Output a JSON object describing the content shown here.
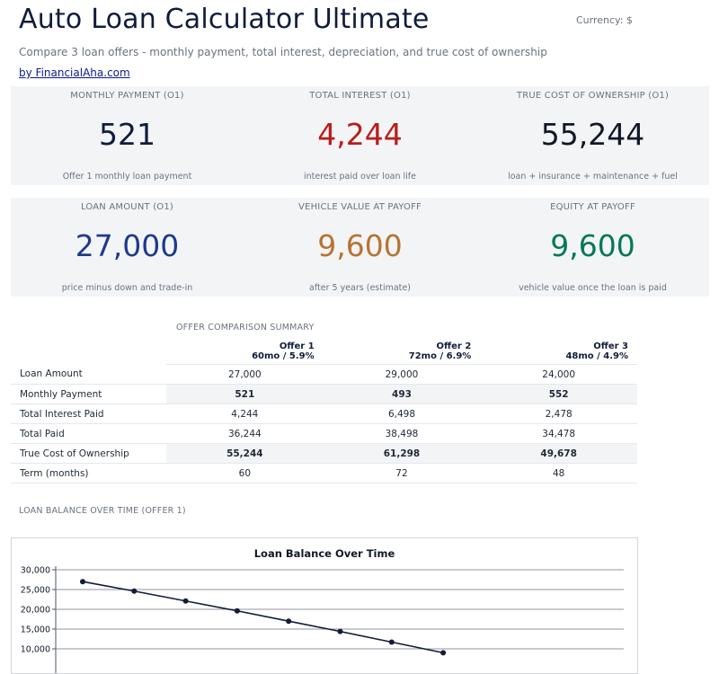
{
  "header": {
    "title": "Auto Loan Calculator Ultimate",
    "currency": "Currency: $",
    "subtitle": "Compare 3 loan offers - monthly payment, total interest, depreciation, and true cost of ownership",
    "byline": "by FinancialAha.com"
  },
  "cards": [
    {
      "label": "MONTHLY PAYMENT (O1)",
      "value": "521",
      "note": "Offer 1 monthly loan payment",
      "color": "#111c3a"
    },
    {
      "label": "TOTAL INTEREST (O1)",
      "value": "4,244",
      "note": "interest paid over loan life",
      "color": "#b91c1c"
    },
    {
      "label": "TRUE COST OF OWNERSHIP (O1)",
      "value": "55,244",
      "note": "loan + insurance + maintenance + fuel",
      "color": "#111827"
    },
    {
      "label": "LOAN AMOUNT (O1)",
      "value": "27,000",
      "note": "price minus down and trade-in",
      "color": "#1e3a8a"
    },
    {
      "label": "VEHICLE VALUE AT PAYOFF",
      "value": "9,600",
      "note": "after 5 years (estimate)",
      "color": "#b87333"
    },
    {
      "label": "EQUITY AT PAYOFF",
      "value": "9,600",
      "note": "vehicle value once the loan is paid",
      "color": "#047857"
    }
  ],
  "comparison": {
    "section_label": "OFFER COMPARISON SUMMARY",
    "offers": [
      {
        "name": "Offer 1",
        "terms": "60mo / 5.9%"
      },
      {
        "name": "Offer 2",
        "terms": "72mo / 6.9%"
      },
      {
        "name": "Offer 3",
        "terms": "48mo / 4.9%"
      }
    ],
    "rows": [
      {
        "label": "Loan Amount",
        "values": [
          "27,000",
          "29,000",
          "24,000"
        ]
      },
      {
        "label": "Monthly Payment",
        "values": [
          "521",
          "493",
          "552"
        ]
      },
      {
        "label": "Total Interest Paid",
        "values": [
          "4,244",
          "6,498",
          "2,478"
        ]
      },
      {
        "label": "Total Paid",
        "values": [
          "36,244",
          "38,498",
          "34,478"
        ]
      },
      {
        "label": "True Cost of Ownership",
        "values": [
          "55,244",
          "61,298",
          "49,678"
        ]
      },
      {
        "label": "Term (months)",
        "values": [
          "60",
          "72",
          "48"
        ]
      }
    ]
  },
  "balance_section_label": "LOAN BALANCE OVER TIME (OFFER 1)",
  "chart_data": {
    "type": "line",
    "title": "Loan Balance Over Time",
    "xlabel": "",
    "ylabel": "",
    "y_ticks": [
      "30,000",
      "25,000",
      "20,000",
      "15,000",
      "10,000"
    ],
    "ylim": [
      0,
      30000
    ],
    "grid": true,
    "series": [
      {
        "values": [
          27000,
          24600,
          22100,
          19600,
          17000,
          14400,
          11700,
          9000
        ],
        "color": "#111c3a"
      }
    ]
  }
}
